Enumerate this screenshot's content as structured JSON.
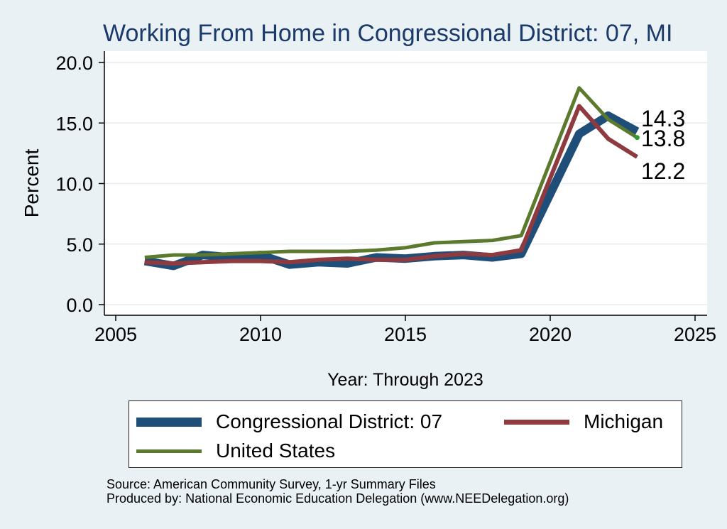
{
  "chart_data": {
    "type": "line",
    "title": "Working From Home in Congressional District: 07, MI",
    "xlabel": "Year: Through 2023",
    "ylabel": "Percent",
    "xlim": [
      2005,
      2025
    ],
    "ylim": [
      0,
      20
    ],
    "x_ticks": [
      "2005",
      "2010",
      "2015",
      "2020",
      "2025"
    ],
    "y_ticks": [
      "0.0",
      "5.0",
      "10.0",
      "15.0",
      "20.0"
    ],
    "grid": true,
    "legend_position": "bottom",
    "series": [
      {
        "name": "Congressional District: 07",
        "color": "#1f4e79",
        "x": [
          2006,
          2007,
          2008,
          2009,
          2010,
          2011,
          2012,
          2013,
          2014,
          2015,
          2016,
          2017,
          2018,
          2019,
          2021,
          2022,
          2023
        ],
        "values": [
          3.6,
          3.2,
          4.1,
          3.9,
          4.1,
          3.3,
          3.5,
          3.4,
          3.9,
          3.8,
          4.0,
          4.1,
          3.9,
          4.2,
          14.1,
          15.6,
          14.3
        ]
      },
      {
        "name": "Michigan",
        "color": "#8f3a3e",
        "x": [
          2006,
          2007,
          2008,
          2009,
          2010,
          2011,
          2012,
          2013,
          2014,
          2015,
          2016,
          2017,
          2018,
          2019,
          2021,
          2022,
          2023
        ],
        "values": [
          3.5,
          3.4,
          3.5,
          3.6,
          3.6,
          3.5,
          3.7,
          3.8,
          3.7,
          3.7,
          4.0,
          4.2,
          4.1,
          4.5,
          16.4,
          13.7,
          12.2
        ]
      },
      {
        "name": "United States",
        "color": "#5b7a2e",
        "x": [
          2006,
          2007,
          2008,
          2009,
          2010,
          2011,
          2012,
          2013,
          2014,
          2015,
          2016,
          2017,
          2018,
          2019,
          2021,
          2022,
          2023
        ],
        "values": [
          3.9,
          4.1,
          4.1,
          4.2,
          4.3,
          4.4,
          4.4,
          4.4,
          4.5,
          4.7,
          5.1,
          5.2,
          5.3,
          5.7,
          17.9,
          15.3,
          13.8
        ]
      }
    ],
    "end_labels": [
      "14.3",
      "13.8",
      "12.2"
    ]
  },
  "footer": {
    "source": "Source: American Community Survey, 1-yr Summary Files",
    "producer": "Produced by: National Economic Education Delegation (www.NEEDelegation.org)"
  }
}
